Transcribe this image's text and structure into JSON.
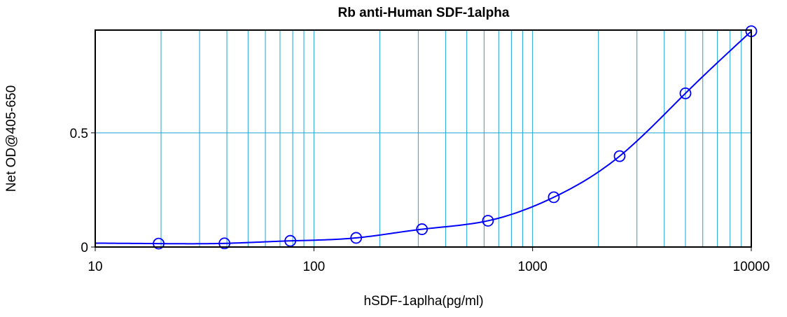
{
  "chart_data": {
    "type": "scatter",
    "title": "Rb anti-Human SDF-1alpha",
    "xlabel": "hSDF-1aplha(pg/ml)",
    "ylabel": "Net OD@405-650",
    "x_scale": "log",
    "xlim": [
      10,
      10000
    ],
    "ylim": [
      0,
      0.95
    ],
    "x_ticks": [
      {
        "value": 10,
        "label": "10"
      },
      {
        "value": 100,
        "label": "100"
      },
      {
        "value": 1000,
        "label": "1000"
      },
      {
        "value": 10000,
        "label": "10000"
      }
    ],
    "y_ticks": [
      {
        "value": 0,
        "label": "0"
      },
      {
        "value": 0.5,
        "label": "0.5"
      }
    ],
    "grid": true,
    "legend": "none",
    "series": [
      {
        "x": [
          19.5,
          39,
          78,
          156,
          312,
          625,
          1250,
          2500,
          5000,
          10000
        ],
        "y": [
          0.015,
          0.016,
          0.027,
          0.04,
          0.078,
          0.115,
          0.218,
          0.398,
          0.673,
          0.945
        ],
        "color": "#0000ff",
        "marker": "open-circle",
        "fit_line": true
      }
    ],
    "colors": {
      "grid": "#1ba3d6",
      "series": "#0000ff",
      "frame": "#000000"
    }
  }
}
